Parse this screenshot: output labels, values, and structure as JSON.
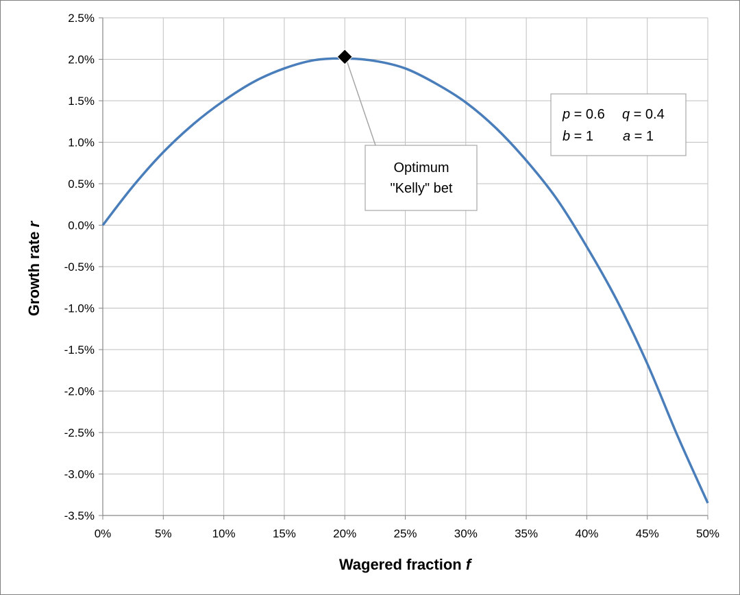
{
  "chart_data": {
    "type": "line",
    "title": "",
    "xlabel": "Wagered fraction",
    "xlabel_var": "f",
    "ylabel": "Growth rate",
    "ylabel_var": "r",
    "xlim": [
      0,
      0.5
    ],
    "ylim": [
      -0.035,
      0.025
    ],
    "x_ticks": [
      0,
      0.05,
      0.1,
      0.15,
      0.2,
      0.25,
      0.3,
      0.35,
      0.4,
      0.45,
      0.5
    ],
    "x_tick_labels": [
      "0%",
      "5%",
      "10%",
      "15%",
      "20%",
      "25%",
      "30%",
      "35%",
      "40%",
      "45%",
      "50%"
    ],
    "y_ticks": [
      0.025,
      0.02,
      0.015,
      0.01,
      0.005,
      0,
      -0.005,
      -0.01,
      -0.015,
      -0.02,
      -0.025,
      -0.03,
      -0.035
    ],
    "y_tick_labels": [
      "2.5%",
      "2.0%",
      "1.5%",
      "1.0%",
      "0.5%",
      "0.0%",
      "-0.5%",
      "-1.0%",
      "-1.5%",
      "-2.0%",
      "-2.5%",
      "-3.0%",
      "-3.5%"
    ],
    "grid": true,
    "series": [
      {
        "color": "#4a7ebb",
        "x": [
          0,
          0.025,
          0.05,
          0.075,
          0.1,
          0.125,
          0.15,
          0.175,
          0.2,
          0.225,
          0.25,
          0.275,
          0.3,
          0.325,
          0.35,
          0.375,
          0.4,
          0.425,
          0.45,
          0.475,
          0.5
        ],
        "y": [
          0,
          0.0047,
          0.0088,
          0.0122,
          0.015,
          0.0173,
          0.0189,
          0.0199,
          0.0201,
          0.0198,
          0.0189,
          0.0171,
          0.0148,
          0.0117,
          0.0078,
          0.0032,
          -0.0026,
          -0.0091,
          -0.0167,
          -0.0254,
          -0.0335
        ]
      }
    ],
    "marker": {
      "x": 0.2,
      "y": 0.0203,
      "shape": "diamond",
      "color": "#000000"
    },
    "annotations": {
      "callout_line1": "Optimum",
      "callout_line2": "\"Kelly\" bet",
      "params_p_var": "p",
      "params_p_val": " = 0.6",
      "params_q_var": "q",
      "params_q_val": " = 0.4",
      "params_b_var": "b",
      "params_b_val": " = 1",
      "params_a_var": "a",
      "params_a_val": " = 1"
    }
  }
}
